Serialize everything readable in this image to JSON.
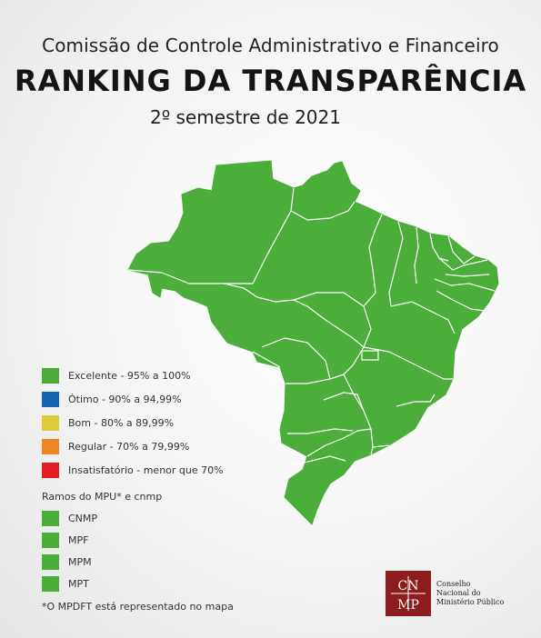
{
  "header": {
    "line1": "Comissão de Controle Administrativo e Financeiro",
    "title": "RANKING  DA TRANSPARÊNCIA",
    "period": "2º semestre de 2021"
  },
  "map": {
    "region": "Brasil",
    "fill_color": "#4bad3a",
    "border_color": "#ffffff",
    "all_states_category": "Excelente - 95% a 100%"
  },
  "legend": [
    {
      "label": "Excelente - 95% a 100%",
      "color": "#4bad3a"
    },
    {
      "label": "Ótimo - 90% a 94,99%",
      "color": "#1565b0"
    },
    {
      "label": "Bom - 80% a 89,99%",
      "color": "#e2cb3a"
    },
    {
      "label": "Regular - 70% a 79,99%",
      "color": "#ee8626"
    },
    {
      "label": "Insatisfatório - menor que 70%",
      "color": "#e41d24"
    }
  ],
  "ramos": {
    "title": "Ramos do MPU* e cnmp",
    "items": [
      {
        "label": "CNMP",
        "color": "#4bad3a"
      },
      {
        "label": "MPF",
        "color": "#4bad3a"
      },
      {
        "label": "MPM",
        "color": "#4bad3a"
      },
      {
        "label": "MPT",
        "color": "#4bad3a"
      }
    ]
  },
  "footnote": "*O MPDFT está representado no mapa",
  "logo": {
    "mark_top": "CN",
    "mark_bottom": "MP",
    "lines": [
      "Conselho",
      "Nacional do",
      "Ministério Público"
    ],
    "color": "#8d1c1f"
  }
}
